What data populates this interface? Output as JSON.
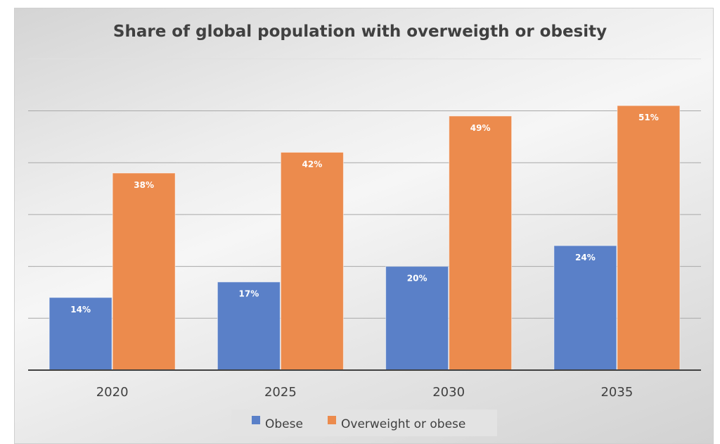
{
  "chart_data": {
    "type": "bar",
    "title": "Share of global population with overweigth or obesity",
    "xlabel": "",
    "ylabel": "",
    "categories": [
      "2020",
      "2025",
      "2030",
      "2035"
    ],
    "series": [
      {
        "name": "Obese",
        "color": "#5A80C8",
        "values": [
          14,
          17,
          20,
          24
        ],
        "labels": [
          "14%",
          "17%",
          "20%",
          "24%"
        ]
      },
      {
        "name": "Overweight or obese",
        "color": "#EC8B4D",
        "values": [
          38,
          42,
          49,
          51
        ],
        "labels": [
          "38%",
          "42%",
          "49%",
          "51%"
        ]
      }
    ],
    "ylim": [
      0,
      60
    ],
    "gridline_step": 10,
    "grid": true,
    "y_tick_labels_visible": false,
    "legend_position": "bottom"
  }
}
